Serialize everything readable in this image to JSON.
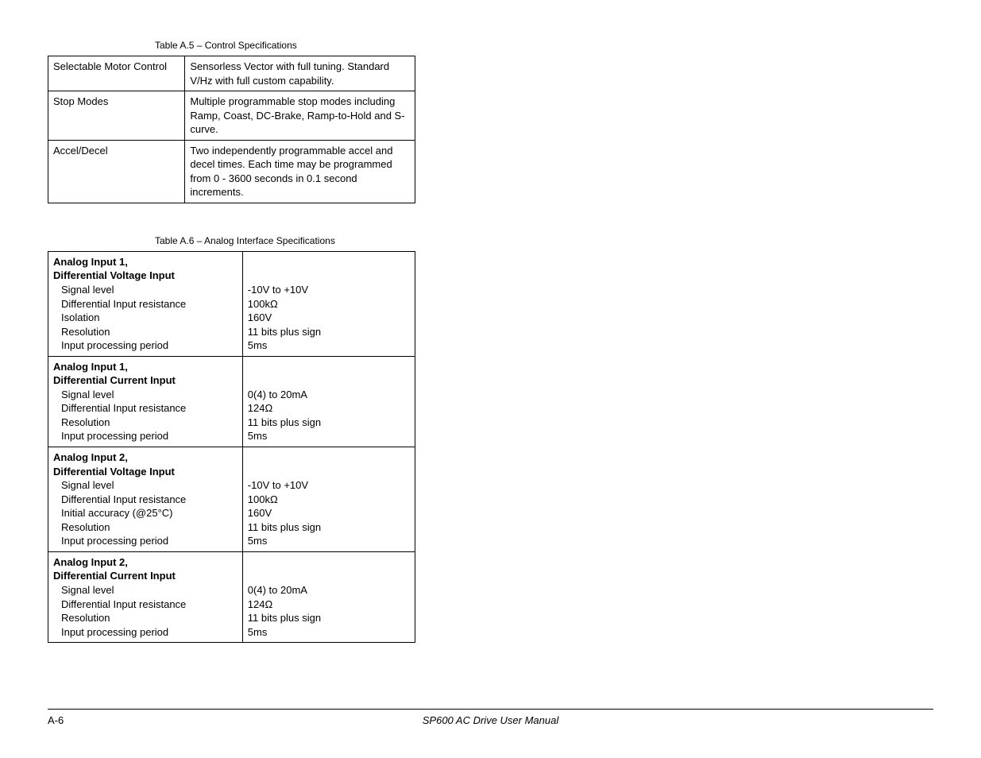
{
  "tableA5": {
    "caption": "Table A.5 – Control Specifications",
    "rows": [
      {
        "label": "Selectable Motor Control",
        "value": "Sensorless Vector with full tuning. Standard V/Hz with full custom capability."
      },
      {
        "label": "Stop Modes",
        "value": "Multiple programmable stop modes including Ramp, Coast, DC-Brake, Ramp-to-Hold and S-curve."
      },
      {
        "label": "Accel/Decel",
        "value": "Two independently programmable accel and decel times. Each time may be programmed from 0 - 3600 seconds in 0.1 second increments."
      }
    ]
  },
  "tableA6": {
    "caption": "Table A.6 – Analog Interface Specifications",
    "sections": [
      {
        "header1": "Analog Input 1,",
        "header2": "Differential Voltage Input",
        "specs": [
          {
            "label": "Signal level",
            "value": "-10V to +10V"
          },
          {
            "label": "Differential Input resistance",
            "value": "100kΩ"
          },
          {
            "label": "Isolation",
            "value": "160V"
          },
          {
            "label": "Resolution",
            "value": "11 bits plus sign"
          },
          {
            "label": "Input processing period",
            "value": "5ms"
          }
        ]
      },
      {
        "header1": "Analog Input 1,",
        "header2": "Differential Current Input",
        "specs": [
          {
            "label": "Signal level",
            "value": "0(4) to 20mA"
          },
          {
            "label": "Differential Input resistance",
            "value": "124Ω"
          },
          {
            "label": "Resolution",
            "value": "11 bits plus sign"
          },
          {
            "label": "Input processing period",
            "value": "5ms"
          }
        ]
      },
      {
        "header1": "Analog Input 2,",
        "header2": "Differential Voltage Input",
        "specs": [
          {
            "label": "Signal level",
            "value": "-10V to +10V"
          },
          {
            "label": "Differential Input resistance",
            "value": "100kΩ"
          },
          {
            "label": "Initial accuracy (@25°C)",
            "value": "160V"
          },
          {
            "label": "Resolution",
            "value": "11 bits plus sign"
          },
          {
            "label": "Input processing period",
            "value": "5ms"
          }
        ]
      },
      {
        "header1": "Analog Input 2,",
        "header2": "Differential Current Input",
        "specs": [
          {
            "label": "Signal level",
            "value": "0(4) to 20mA"
          },
          {
            "label": "Differential Input resistance",
            "value": "124Ω"
          },
          {
            "label": "Resolution",
            "value": "11 bits plus sign"
          },
          {
            "label": "Input processing period",
            "value": "5ms"
          }
        ]
      }
    ]
  },
  "footer": {
    "page": "A-6",
    "title": "SP600 AC Drive User Manual"
  }
}
